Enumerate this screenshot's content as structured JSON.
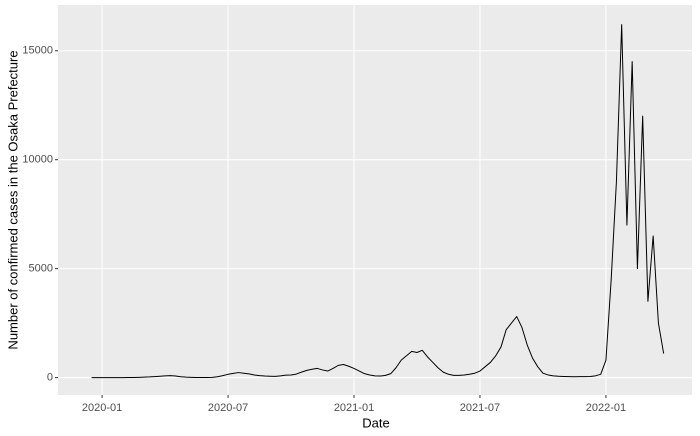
{
  "chart_data": {
    "type": "line",
    "xlabel": "Date",
    "ylabel": "Number of confirmed cases in the Osaka Prefecture",
    "x": [
      -0.5,
      -0.25,
      0,
      0.25,
      0.5,
      0.75,
      1,
      1.25,
      1.5,
      1.75,
      2,
      2.25,
      2.5,
      2.75,
      3,
      3.25,
      3.5,
      3.75,
      4,
      4.25,
      4.5,
      4.75,
      5,
      5.25,
      5.5,
      5.75,
      6,
      6.25,
      6.5,
      6.75,
      7,
      7.25,
      7.5,
      7.75,
      8,
      8.25,
      8.5,
      8.75,
      9,
      9.25,
      9.5,
      9.75,
      10,
      10.25,
      10.5,
      10.75,
      11,
      11.25,
      11.5,
      11.75,
      12,
      12.25,
      12.5,
      12.75,
      13,
      13.25,
      13.5,
      13.75,
      14,
      14.25,
      14.5,
      14.75,
      15,
      15.25,
      15.5,
      15.75,
      16,
      16.25,
      16.5,
      16.75,
      17,
      17.25,
      17.5,
      17.75,
      18,
      18.25,
      18.5,
      18.75,
      19,
      19.25,
      19.5,
      19.75,
      20,
      20.25,
      20.5,
      20.75,
      21,
      21.25,
      21.5,
      21.75,
      22,
      22.25,
      22.5,
      22.75,
      23,
      23.25,
      23.5,
      23.75,
      24,
      24.25,
      24.5,
      24.75,
      25,
      25.25,
      25.5,
      25.75,
      26,
      26.25,
      26.5,
      26.75
    ],
    "series": [
      {
        "name": "cases",
        "color": "#000000",
        "values": [
          0,
          0,
          0,
          0,
          0,
          0,
          0,
          2,
          5,
          10,
          20,
          30,
          45,
          60,
          80,
          90,
          70,
          40,
          20,
          10,
          5,
          3,
          5,
          10,
          40,
          90,
          150,
          190,
          230,
          200,
          170,
          120,
          90,
          70,
          60,
          55,
          80,
          110,
          120,
          160,
          250,
          330,
          380,
          420,
          350,
          300,
          420,
          560,
          600,
          520,
          420,
          300,
          180,
          120,
          80,
          70,
          100,
          180,
          450,
          800,
          1000,
          1200,
          1150,
          1250,
          950,
          700,
          450,
          250,
          150,
          100,
          100,
          120,
          150,
          200,
          300,
          500,
          700,
          1000,
          1400,
          2200,
          2500,
          2800,
          2300,
          1500,
          900,
          500,
          200,
          120,
          80,
          60,
          50,
          45,
          40,
          45,
          45,
          50,
          80,
          150,
          800,
          4500,
          9000,
          16200,
          7000,
          14500,
          5000,
          12000,
          3500,
          6500,
          2500,
          1100
        ]
      }
    ],
    "xlim": [
      -2.1,
      28.1
    ],
    "xticks": [
      {
        "value": 0,
        "label": "2020-01"
      },
      {
        "value": 6,
        "label": "2020-07"
      },
      {
        "value": 12,
        "label": "2021-01"
      },
      {
        "value": 18,
        "label": "2021-07"
      },
      {
        "value": 24,
        "label": "2022-01"
      }
    ],
    "ylim": [
      -800,
      17100
    ],
    "yticks": [
      0,
      5000,
      10000,
      15000
    ],
    "grid": true,
    "background": "#ebebeb"
  }
}
